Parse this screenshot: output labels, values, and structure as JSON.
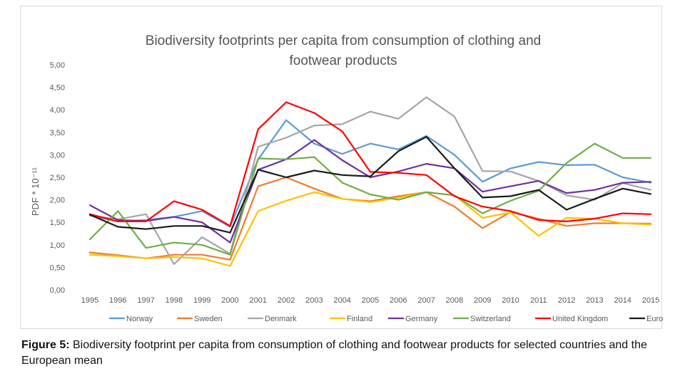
{
  "caption": {
    "label": "Figure 5:",
    "text": " Biodiversity footprint per capita from consumption of clothing and footwear products for selected countries and the European mean"
  },
  "chart_data": {
    "type": "line",
    "title_lines": [
      "Biodiversity footprints per capita from consumption of clothing and",
      "footwear products"
    ],
    "ylabel": "PDF * 10⁻¹¹",
    "xlabel": "",
    "ylim": [
      0,
      5
    ],
    "yticks": [
      "0,00",
      "0,50",
      "1,00",
      "1,50",
      "2,00",
      "2,50",
      "3,00",
      "3,50",
      "4,00",
      "4,50",
      "5,00"
    ],
    "categories": [
      "1995",
      "1996",
      "1997",
      "1998",
      "1999",
      "2000",
      "2001",
      "2002",
      "2003",
      "2004",
      "2005",
      "2006",
      "2007",
      "2008",
      "2009",
      "2010",
      "2011",
      "2012",
      "2013",
      "2014",
      "2015"
    ],
    "legend_position": "bottom",
    "series": [
      {
        "name": "Norway",
        "color": "#5b9bd5",
        "values": [
          1.65,
          1.52,
          1.55,
          1.62,
          1.75,
          1.4,
          2.9,
          3.77,
          3.25,
          3.02,
          3.25,
          3.12,
          3.42,
          3.0,
          2.4,
          2.7,
          2.84,
          2.77,
          2.78,
          2.5,
          2.38
        ]
      },
      {
        "name": "Sweden",
        "color": "#ed7d31",
        "values": [
          0.83,
          0.77,
          0.7,
          0.78,
          0.78,
          0.67,
          2.3,
          2.5,
          2.25,
          2.02,
          1.97,
          2.08,
          2.17,
          1.85,
          1.37,
          1.73,
          1.58,
          1.42,
          1.48,
          1.48,
          1.47
        ]
      },
      {
        "name": "Denmark",
        "color": "#a5a5a5",
        "values": [
          1.65,
          1.57,
          1.68,
          0.57,
          1.17,
          0.8,
          3.18,
          3.38,
          3.65,
          3.68,
          3.96,
          3.8,
          4.28,
          3.85,
          2.64,
          2.63,
          2.42,
          2.1,
          2.0,
          2.37,
          2.22
        ]
      },
      {
        "name": "Finland",
        "color": "#ffc000",
        "values": [
          0.78,
          0.75,
          0.7,
          0.73,
          0.7,
          0.53,
          1.75,
          1.98,
          2.17,
          2.02,
          1.95,
          2.05,
          2.17,
          2.1,
          1.6,
          1.72,
          1.2,
          1.6,
          1.58,
          1.48,
          1.45
        ]
      },
      {
        "name": "Germany",
        "color": "#7030a0",
        "values": [
          1.88,
          1.55,
          1.53,
          1.62,
          1.5,
          1.05,
          2.67,
          2.9,
          3.33,
          2.88,
          2.5,
          2.63,
          2.8,
          2.7,
          2.18,
          2.3,
          2.42,
          2.15,
          2.22,
          2.38,
          2.4
        ]
      },
      {
        "name": "Switzerland",
        "color": "#70ad47",
        "values": [
          1.12,
          1.75,
          0.93,
          1.05,
          1.0,
          0.78,
          2.92,
          2.9,
          2.95,
          2.38,
          2.12,
          2.0,
          2.17,
          2.1,
          1.7,
          1.98,
          2.2,
          2.82,
          3.25,
          2.93,
          2.93
        ]
      },
      {
        "name": "United Kingdom",
        "color": "#ff0000",
        "values": [
          1.68,
          1.52,
          1.52,
          1.97,
          1.78,
          1.42,
          3.57,
          4.17,
          3.93,
          3.52,
          2.62,
          2.6,
          2.55,
          2.08,
          1.85,
          1.75,
          1.55,
          1.52,
          1.58,
          1.7,
          1.68
        ]
      },
      {
        "name": "Europe",
        "color": "#1a1a1a",
        "values": [
          1.67,
          1.4,
          1.35,
          1.42,
          1.42,
          1.27,
          2.67,
          2.5,
          2.65,
          2.55,
          2.52,
          3.08,
          3.4,
          2.7,
          2.05,
          2.08,
          2.22,
          1.78,
          2.02,
          2.25,
          2.13
        ]
      }
    ]
  }
}
